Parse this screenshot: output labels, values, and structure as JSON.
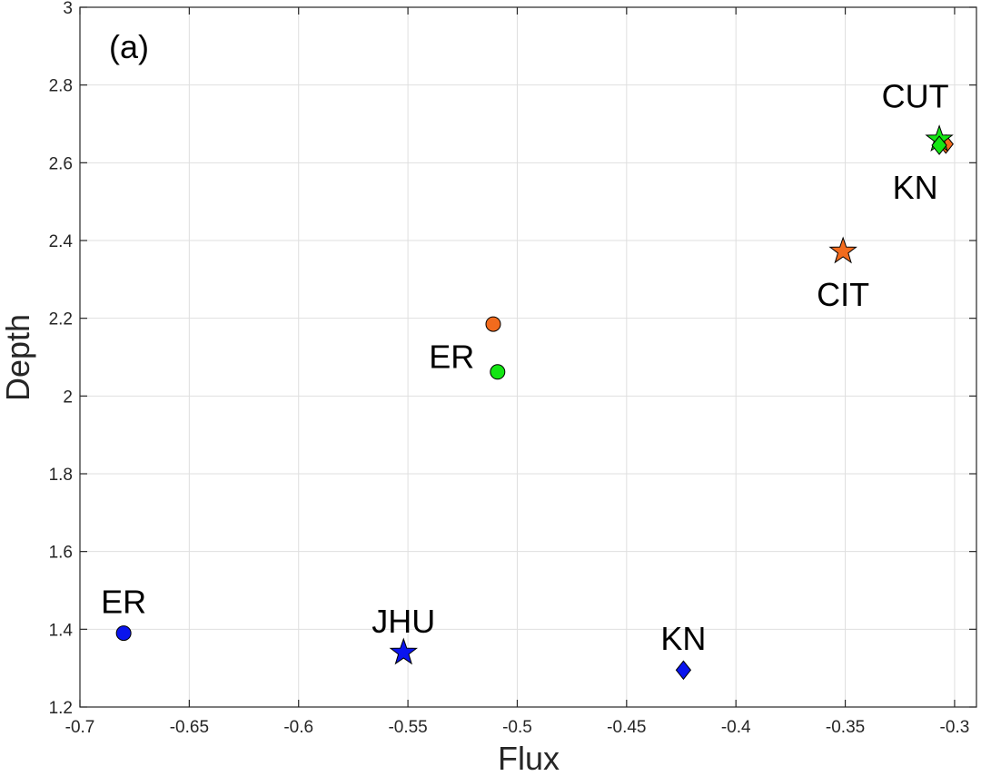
{
  "chart_data": {
    "type": "scatter",
    "panel_label": "(a)",
    "xlabel": "Flux",
    "ylabel": "Depth",
    "xlim": [
      -0.7,
      -0.29
    ],
    "ylim": [
      1.2,
      3.0
    ],
    "xticks": [
      -0.7,
      -0.65,
      -0.6,
      -0.55,
      -0.5,
      -0.45,
      -0.4,
      -0.35,
      -0.3
    ],
    "xtick_labels": [
      "-0.7",
      "-0.65",
      "-0.6",
      "-0.55",
      "-0.5",
      "-0.45",
      "-0.4",
      "-0.35",
      "-0.3"
    ],
    "yticks": [
      1.2,
      1.4,
      1.6,
      1.8,
      2.0,
      2.2,
      2.4,
      2.6,
      2.8,
      3.0
    ],
    "ytick_labels": [
      "1.2",
      "1.4",
      "1.6",
      "1.8",
      "2",
      "2.2",
      "2.4",
      "2.6",
      "2.8",
      "3"
    ],
    "grid": true,
    "colors": {
      "blue": "#0a14ee",
      "orange": "#f26b1d",
      "green": "#14e614"
    },
    "points": [
      {
        "name": "blue-circle",
        "x": -0.68,
        "y": 1.39,
        "marker": "circle",
        "color": "blue"
      },
      {
        "name": "blue-star",
        "x": -0.552,
        "y": 1.34,
        "marker": "star",
        "color": "blue"
      },
      {
        "name": "blue-diamond",
        "x": -0.424,
        "y": 1.295,
        "marker": "diamond",
        "color": "blue"
      },
      {
        "name": "orange-circle",
        "x": -0.511,
        "y": 2.185,
        "marker": "circle",
        "color": "orange"
      },
      {
        "name": "green-circle",
        "x": -0.509,
        "y": 2.062,
        "marker": "circle",
        "color": "green"
      },
      {
        "name": "orange-star",
        "x": -0.351,
        "y": 2.372,
        "marker": "star",
        "color": "orange"
      },
      {
        "name": "orange-diamond",
        "x": -0.304,
        "y": 2.648,
        "marker": "diamond",
        "color": "orange"
      },
      {
        "name": "green-star",
        "x": -0.307,
        "y": 2.66,
        "marker": "star",
        "color": "green"
      },
      {
        "name": "green-diamond",
        "x": -0.307,
        "y": 2.645,
        "marker": "diamond",
        "color": "green"
      }
    ],
    "annotations": [
      {
        "text": "ER",
        "x": -0.68,
        "y": 1.47
      },
      {
        "text": "JHU",
        "x": -0.552,
        "y": 1.42
      },
      {
        "text": "KN",
        "x": -0.424,
        "y": 1.375
      },
      {
        "text": "ER",
        "x": -0.53,
        "y": 2.1
      },
      {
        "text": "CIT",
        "x": -0.351,
        "y": 2.26
      },
      {
        "text": "CUT",
        "x": -0.318,
        "y": 2.77
      },
      {
        "text": "KN",
        "x": -0.318,
        "y": 2.535
      }
    ]
  }
}
